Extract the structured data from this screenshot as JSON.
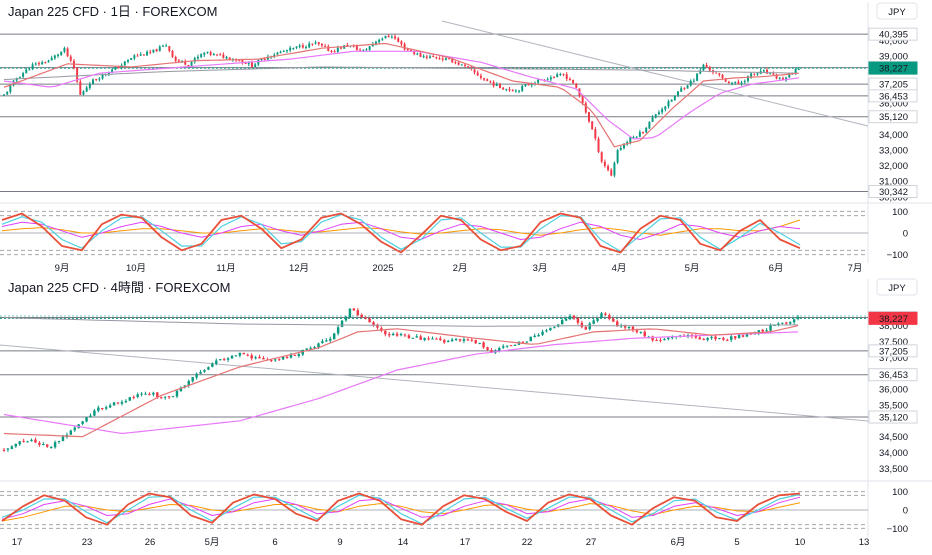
{
  "colors": {
    "up": "#089981",
    "down": "#f23645",
    "ma_fast": "#e57373",
    "ma_slow": "#e879f9",
    "ma_long": "#9598a1",
    "stoch_k": "#e8503a",
    "stoch_d": "#4dd0e1",
    "stoch_ma1": "#e040fb",
    "stoch_ma2": "#ff9800",
    "level_line": "#787b86",
    "trend_line": "#b2b5be",
    "last_price_bg": "#f23645",
    "last_price_bg_daily": "#089981"
  },
  "chart_data": [
    {
      "type": "candlestick",
      "title": "Japan 225 CFD · 1日 · FOREXCOM",
      "currency": "JPY",
      "x_ticks": [
        "9月",
        "10月",
        "11月",
        "12月",
        "2025",
        "2月",
        "3月",
        "4月",
        "5月",
        "6月",
        "7月"
      ],
      "y_ticks": [
        "40,000",
        "39,000",
        "36,000",
        "34,000",
        "33,000",
        "32,000",
        "31,000",
        "30,000"
      ],
      "ylim": [
        29800,
        41300
      ],
      "price_levels": [
        "40,395",
        "38,256",
        "38,227",
        "37,205",
        "36,453",
        "35,120",
        "30,342"
      ],
      "last_price": "38,227",
      "close_path": [
        [
          0,
          36500
        ],
        [
          4,
          37600
        ],
        [
          9,
          38400
        ],
        [
          14,
          38700
        ],
        [
          19,
          39400
        ],
        [
          22,
          38200
        ],
        [
          24,
          36500
        ],
        [
          27,
          37300
        ],
        [
          31,
          37800
        ],
        [
          36,
          38300
        ],
        [
          41,
          39000
        ],
        [
          46,
          39200
        ],
        [
          51,
          39700
        ],
        [
          54,
          38700
        ],
        [
          58,
          38500
        ],
        [
          63,
          39200
        ],
        [
          68,
          39000
        ],
        [
          73,
          38800
        ],
        [
          78,
          38400
        ],
        [
          83,
          39000
        ],
        [
          88,
          39300
        ],
        [
          93,
          39600
        ],
        [
          98,
          39800
        ],
        [
          103,
          39300
        ],
        [
          108,
          39700
        ],
        [
          113,
          39300
        ],
        [
          118,
          40100
        ],
        [
          122,
          40300
        ],
        [
          126,
          39500
        ],
        [
          131,
          39000
        ],
        [
          136,
          38900
        ],
        [
          141,
          38700
        ],
        [
          146,
          38200
        ],
        [
          151,
          37500
        ],
        [
          156,
          37000
        ],
        [
          161,
          36800
        ],
        [
          166,
          37300
        ],
        [
          171,
          37600
        ],
        [
          176,
          37800
        ],
        [
          179,
          37300
        ],
        [
          182,
          36000
        ],
        [
          185,
          34300
        ],
        [
          188,
          32300
        ],
        [
          191,
          31400
        ],
        [
          193,
          33000
        ],
        [
          197,
          33700
        ],
        [
          201,
          34200
        ],
        [
          205,
          35300
        ],
        [
          209,
          36000
        ],
        [
          213,
          36900
        ],
        [
          217,
          37500
        ],
        [
          220,
          38400
        ],
        [
          223,
          38000
        ],
        [
          227,
          37400
        ],
        [
          231,
          37200
        ],
        [
          235,
          37800
        ],
        [
          239,
          38000
        ],
        [
          242,
          37700
        ],
        [
          245,
          37500
        ],
        [
          248,
          37900
        ],
        [
          250,
          38227
        ]
      ],
      "ma_fast_path": [
        [
          0,
          37000
        ],
        [
          20,
          38500
        ],
        [
          40,
          38300
        ],
        [
          60,
          38700
        ],
        [
          80,
          38800
        ],
        [
          100,
          39500
        ],
        [
          120,
          39800
        ],
        [
          140,
          38900
        ],
        [
          160,
          37400
        ],
        [
          175,
          37000
        ],
        [
          185,
          35500
        ],
        [
          192,
          33200
        ],
        [
          200,
          33600
        ],
        [
          210,
          35600
        ],
        [
          220,
          37400
        ],
        [
          230,
          37600
        ],
        [
          240,
          37700
        ],
        [
          250,
          37900
        ]
      ],
      "ma_slow_path": [
        [
          0,
          37400
        ],
        [
          15,
          37000
        ],
        [
          30,
          37900
        ],
        [
          50,
          38200
        ],
        [
          70,
          38500
        ],
        [
          90,
          38800
        ],
        [
          110,
          39300
        ],
        [
          130,
          39300
        ],
        [
          150,
          38600
        ],
        [
          165,
          37700
        ],
        [
          180,
          36900
        ],
        [
          190,
          34900
        ],
        [
          198,
          33700
        ],
        [
          205,
          33800
        ],
        [
          215,
          35300
        ],
        [
          225,
          36600
        ],
        [
          235,
          37200
        ],
        [
          250,
          37600
        ]
      ],
      "ma_long_path": [
        [
          0,
          37500
        ],
        [
          50,
          38000
        ],
        [
          100,
          38300
        ],
        [
          150,
          38200
        ],
        [
          200,
          38100
        ],
        [
          250,
          37900
        ]
      ],
      "stoch": {
        "ylim": [
          -120,
          120
        ],
        "y_ticks": [
          "100",
          "0",
          "−100"
        ],
        "k_values": [
          60,
          90,
          30,
          -60,
          -80,
          40,
          85,
          70,
          -20,
          -80,
          -50,
          60,
          80,
          20,
          -70,
          -30,
          70,
          90,
          40,
          -40,
          -90,
          -10,
          80,
          60,
          -30,
          -80,
          -60,
          50,
          90,
          70,
          -60,
          -90,
          20,
          80,
          60,
          -50,
          -80,
          10,
          60,
          -30,
          -70
        ],
        "d_values": [
          40,
          75,
          50,
          -30,
          -70,
          10,
          70,
          75,
          10,
          -60,
          -60,
          30,
          75,
          40,
          -50,
          -40,
          50,
          85,
          60,
          -20,
          -75,
          -30,
          60,
          70,
          0,
          -65,
          -65,
          20,
          80,
          75,
          -30,
          -85,
          -10,
          65,
          70,
          -20,
          -75,
          -20,
          45,
          0,
          -55
        ],
        "ma1_values": [
          30,
          50,
          40,
          10,
          -20,
          0,
          30,
          50,
          30,
          0,
          -20,
          0,
          30,
          40,
          10,
          -10,
          10,
          40,
          50,
          20,
          -20,
          -30,
          10,
          40,
          30,
          0,
          -30,
          -20,
          20,
          50,
          30,
          -10,
          -30,
          0,
          40,
          30,
          0,
          -20,
          10,
          30,
          20
        ],
        "ma2_values": [
          10,
          20,
          25,
          15,
          0,
          0,
          10,
          20,
          20,
          10,
          0,
          0,
          10,
          20,
          15,
          5,
          5,
          15,
          25,
          20,
          5,
          -5,
          0,
          10,
          20,
          15,
          0,
          -10,
          0,
          15,
          25,
          15,
          0,
          -10,
          5,
          20,
          20,
          10,
          10,
          30,
          60
        ]
      }
    },
    {
      "type": "candlestick",
      "title": "Japan 225 CFD · 4時間 · FOREXCOM",
      "currency": "JPY",
      "x_ticks": [
        "17",
        "23",
        "26",
        "5月",
        "6",
        "9",
        "14",
        "17",
        "22",
        "27",
        "6月",
        "5",
        "10",
        "13"
      ],
      "y_ticks": [
        "38,000",
        "37,500",
        "37,000",
        "36,000",
        "35,500",
        "34,500",
        "34,000",
        "33,500"
      ],
      "ylim": [
        33200,
        38900
      ],
      "price_levels": [
        "38,256",
        "38,227",
        "37,205",
        "36,453",
        "35,120"
      ],
      "last_price": "38,227",
      "close_path": [
        [
          0,
          34100
        ],
        [
          6,
          34400
        ],
        [
          12,
          34200
        ],
        [
          18,
          34800
        ],
        [
          24,
          35400
        ],
        [
          30,
          35600
        ],
        [
          36,
          35900
        ],
        [
          42,
          35700
        ],
        [
          48,
          36400
        ],
        [
          54,
          36900
        ],
        [
          60,
          37100
        ],
        [
          66,
          36900
        ],
        [
          72,
          37000
        ],
        [
          78,
          37300
        ],
        [
          84,
          37700
        ],
        [
          88,
          38500
        ],
        [
          92,
          38200
        ],
        [
          96,
          37800
        ],
        [
          100,
          37700
        ],
        [
          106,
          37600
        ],
        [
          112,
          37500
        ],
        [
          118,
          37600
        ],
        [
          124,
          37200
        ],
        [
          130,
          37400
        ],
        [
          136,
          37700
        ],
        [
          140,
          38000
        ],
        [
          144,
          38300
        ],
        [
          148,
          37900
        ],
        [
          152,
          38400
        ],
        [
          156,
          38000
        ],
        [
          160,
          37900
        ],
        [
          166,
          37500
        ],
        [
          172,
          37700
        ],
        [
          178,
          37600
        ],
        [
          184,
          37600
        ],
        [
          190,
          37700
        ],
        [
          196,
          38000
        ],
        [
          202,
          38227
        ]
      ],
      "ma_fast_path": [
        [
          0,
          34600
        ],
        [
          20,
          34500
        ],
        [
          40,
          35800
        ],
        [
          60,
          36700
        ],
        [
          80,
          37300
        ],
        [
          90,
          37800
        ],
        [
          100,
          37900
        ],
        [
          120,
          37600
        ],
        [
          135,
          37400
        ],
        [
          150,
          37800
        ],
        [
          165,
          37900
        ],
        [
          180,
          37700
        ],
        [
          195,
          37800
        ],
        [
          202,
          38000
        ]
      ],
      "ma_slow_path": [
        [
          0,
          35200
        ],
        [
          30,
          34600
        ],
        [
          60,
          35000
        ],
        [
          80,
          35700
        ],
        [
          100,
          36600
        ],
        [
          120,
          37100
        ],
        [
          140,
          37400
        ],
        [
          160,
          37600
        ],
        [
          180,
          37700
        ],
        [
          202,
          37800
        ]
      ],
      "ma_long_path": [
        [
          0,
          38250
        ],
        [
          60,
          38050
        ],
        [
          120,
          37980
        ],
        [
          202,
          38020
        ]
      ],
      "stoch": {
        "ylim": [
          -120,
          120
        ],
        "y_ticks": [
          "100",
          "0",
          "−100"
        ],
        "k_values": [
          -60,
          20,
          80,
          50,
          -40,
          -80,
          30,
          90,
          70,
          -30,
          -70,
          40,
          85,
          60,
          -20,
          -60,
          50,
          90,
          50,
          -50,
          -80,
          20,
          80,
          60,
          -10,
          -60,
          40,
          85,
          60,
          -30,
          -80,
          10,
          70,
          50,
          -40,
          -60,
          30,
          80,
          90
        ],
        "d_values": [
          -40,
          0,
          60,
          60,
          -10,
          -70,
          0,
          70,
          75,
          0,
          -60,
          10,
          70,
          70,
          10,
          -50,
          20,
          80,
          65,
          -20,
          -75,
          -10,
          60,
          70,
          10,
          -45,
          10,
          70,
          70,
          0,
          -65,
          -20,
          50,
          60,
          -10,
          -55,
          0,
          60,
          85
        ],
        "ma1_values": [
          -50,
          -20,
          30,
          50,
          20,
          -30,
          -20,
          30,
          60,
          20,
          -30,
          -10,
          40,
          60,
          30,
          -20,
          -10,
          50,
          60,
          10,
          -40,
          -30,
          20,
          50,
          30,
          -20,
          -10,
          40,
          60,
          20,
          -40,
          -30,
          20,
          40,
          10,
          -30,
          -10,
          40,
          70
        ],
        "ma2_values": [
          -60,
          -40,
          -10,
          20,
          20,
          0,
          -10,
          10,
          30,
          25,
          0,
          -10,
          10,
          30,
          30,
          5,
          -10,
          20,
          35,
          20,
          -10,
          -20,
          0,
          25,
          30,
          5,
          -10,
          10,
          35,
          25,
          -5,
          -25,
          0,
          20,
          15,
          -5,
          -10,
          15,
          40
        ]
      }
    }
  ]
}
